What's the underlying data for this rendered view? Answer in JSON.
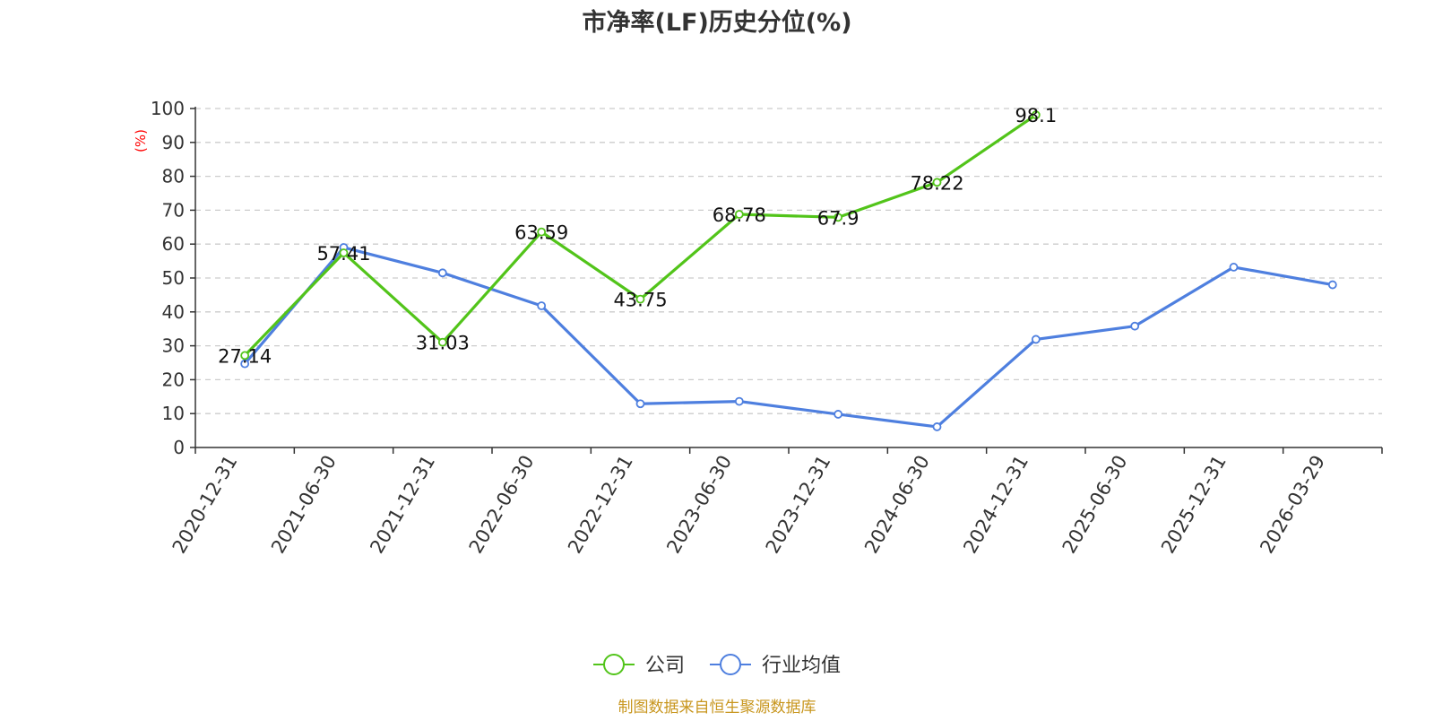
{
  "chart_data": {
    "type": "line",
    "title": "市净率(LF)历史分位(%)",
    "xlabel": "",
    "ylabel": "(%)",
    "categories": [
      "2020-12-31",
      "2021-06-30",
      "2021-12-31",
      "2022-06-30",
      "2022-12-31",
      "2023-06-30",
      "2023-12-31",
      "2024-06-30",
      "2024-12-31",
      "2025-06-30",
      "2025-12-31",
      "2026-03-29"
    ],
    "ylim": [
      0,
      100
    ],
    "yticks": [
      0,
      10,
      20,
      30,
      40,
      50,
      60,
      70,
      80,
      90,
      100
    ],
    "grid": true,
    "legend_position": "bottom-center",
    "series": [
      {
        "name": "公司",
        "color": "#52c41a",
        "show_labels": true,
        "values": [
          27.14,
          57.41,
          31.03,
          63.59,
          43.75,
          68.78,
          67.9,
          78.22,
          98.1,
          null,
          null,
          null
        ]
      },
      {
        "name": "行业均值",
        "color": "#4e7fdf",
        "show_labels": false,
        "values": [
          24.7,
          59.0,
          51.5,
          41.8,
          12.9,
          13.6,
          9.8,
          6.1,
          31.9,
          35.8,
          53.2,
          48.0
        ]
      }
    ]
  },
  "footer": {
    "source": "制图数据来自恒生聚源数据库"
  },
  "colors": {
    "axis": "#333333",
    "grid": "#cccccc",
    "title": "#333333",
    "ylabel": "#ff0000",
    "source": "#c8961e"
  }
}
